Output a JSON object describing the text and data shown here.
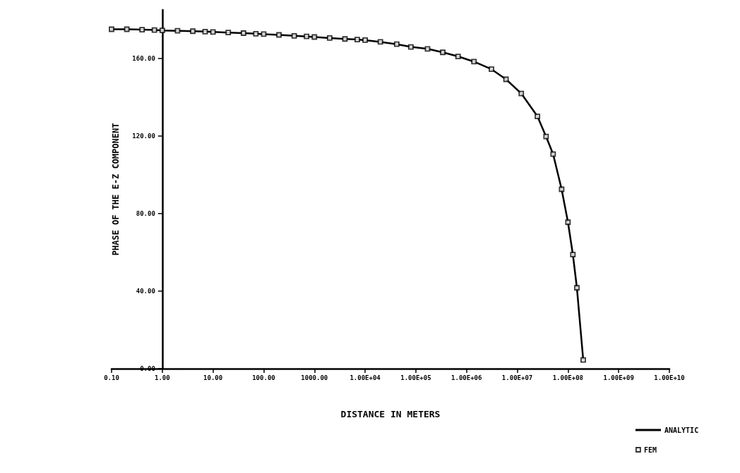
{
  "chart_data": {
    "type": "line",
    "xlabel": "DISTANCE IN METERS",
    "ylabel": "PHASE OF THE E-Z COMPONENT",
    "log": "x",
    "grid": false,
    "legend": "bottom right",
    "x": [
      0.1,
      0.2,
      0.4,
      0.7,
      1,
      2,
      4,
      7,
      10,
      20,
      40,
      70,
      100,
      200,
      400,
      700,
      1000,
      2000,
      4000,
      7000,
      10000,
      20000,
      42000,
      80000,
      170000,
      340000,
      680000,
      1400000,
      3100000,
      6000000,
      12000000,
      25000000,
      37000000,
      51000000,
      75000000,
      100000000,
      125000000,
      150000000,
      200000000
    ],
    "series": [
      {
        "name": "ANALYTIC",
        "color": "#000000",
        "marker": "none",
        "line_style": "solid",
        "values": [
          175,
          175,
          174.8,
          174.6,
          174.4,
          174.2,
          174,
          173.8,
          173.6,
          173.3,
          173,
          172.7,
          172.5,
          172.1,
          171.6,
          171.3,
          171,
          170.5,
          170,
          169.7,
          169.4,
          168.5,
          167.3,
          165.9,
          164.9,
          163.1,
          161,
          158.3,
          154.4,
          149.2,
          141.9,
          130.1,
          119.7,
          110.6,
          92.5,
          75.5,
          58.8,
          41.7,
          4.5
        ]
      },
      {
        "name": "FEM",
        "type": "scatter",
        "color": "#000000",
        "marker": "square",
        "values": [
          175,
          175,
          174.8,
          174.6,
          174.4,
          174.2,
          174,
          173.8,
          173.6,
          173.3,
          173,
          172.7,
          172.5,
          172.1,
          171.6,
          171.3,
          171,
          170.5,
          170,
          169.7,
          169.4,
          168.5,
          167.3,
          165.9,
          164.9,
          163.1,
          161,
          158.3,
          154.4,
          149.2,
          141.9,
          130.1,
          119.7,
          110.6,
          92.5,
          75.5,
          58.8,
          41.7,
          4.5
        ]
      }
    ],
    "xlim": [
      0.1,
      10000000000
    ],
    "xticks": [
      {
        "value": 0.1,
        "label": "0.10"
      },
      {
        "value": 1,
        "label": "1.00"
      },
      {
        "value": 10,
        "label": "10.00"
      },
      {
        "value": 100,
        "label": "100.00"
      },
      {
        "value": 1000,
        "label": "1000.00"
      },
      {
        "value": 10000,
        "label": "1.00E+04"
      },
      {
        "value": 100000,
        "label": "1.00E+05"
      },
      {
        "value": 1000000,
        "label": "1.00E+06"
      },
      {
        "value": 10000000,
        "label": "1.00E+07"
      },
      {
        "value": 100000000,
        "label": "1.00E+08"
      },
      {
        "value": 1000000000,
        "label": "1.00E+09"
      },
      {
        "value": 10000000000,
        "label": "1.00E+10"
      }
    ],
    "ylim": [
      0,
      185
    ],
    "yticks": [
      {
        "value": 0,
        "label": "0.00"
      },
      {
        "value": 40,
        "label": "40.00"
      },
      {
        "value": 80,
        "label": "80.00"
      },
      {
        "value": 120,
        "label": "120.00"
      },
      {
        "value": 160,
        "label": "160.00"
      }
    ]
  }
}
